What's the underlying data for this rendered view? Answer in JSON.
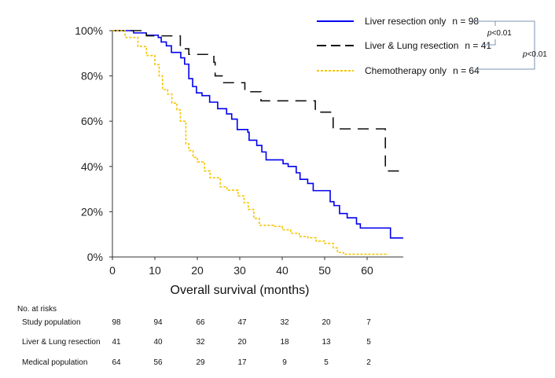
{
  "chart_data": {
    "type": "line",
    "subtype": "kaplan-meier-step",
    "xlabel": "Overall survival (months)",
    "ylabel": "",
    "xlim": [
      0,
      68.5
    ],
    "ylim": [
      0,
      100
    ],
    "x_ticks": [
      "0",
      "10",
      "20",
      "30",
      "40",
      "50",
      "60"
    ],
    "y_ticks": [
      "0%",
      "20%",
      "40%",
      "60%",
      "80%",
      "100%"
    ],
    "grid": false,
    "legend_position": "top-right",
    "series": [
      {
        "name": "Liver resection only",
        "n_label": "n = 98",
        "color": "#0000ee",
        "style": "solid",
        "points": [
          [
            0,
            100
          ],
          [
            5,
            99
          ],
          [
            8,
            98
          ],
          [
            10.8,
            97
          ],
          [
            11.5,
            95
          ],
          [
            12.7,
            93.3
          ],
          [
            13.9,
            90.4
          ],
          [
            16.1,
            88
          ],
          [
            17,
            85.2
          ],
          [
            18,
            78.8
          ],
          [
            18.9,
            75.3
          ],
          [
            19.8,
            72.5
          ],
          [
            21.1,
            71.3
          ],
          [
            22.9,
            68.4
          ],
          [
            24.8,
            65.5
          ],
          [
            26.9,
            63.2
          ],
          [
            28.1,
            60.9
          ],
          [
            29.4,
            56.3
          ],
          [
            31.9,
            55.1
          ],
          [
            32.2,
            51.6
          ],
          [
            34,
            49.3
          ],
          [
            35.2,
            46.4
          ],
          [
            36.2,
            42.9
          ],
          [
            40.2,
            41.2
          ],
          [
            41.4,
            40
          ],
          [
            43.3,
            37.2
          ],
          [
            44.2,
            34.3
          ],
          [
            46,
            32.5
          ],
          [
            47.3,
            29.3
          ],
          [
            51.3,
            24.4
          ],
          [
            52.2,
            22.7
          ],
          [
            53.5,
            19.2
          ],
          [
            55.3,
            17.3
          ],
          [
            57.5,
            14.6
          ],
          [
            58.4,
            12.8
          ],
          [
            65.5,
            8.4
          ],
          [
            68.5,
            8.4
          ]
        ]
      },
      {
        "name": "Liver & Lung resection",
        "n_label": "n = 41",
        "color": "#111111",
        "style": "dashed",
        "points": [
          [
            0,
            100
          ],
          [
            8,
            97.7
          ],
          [
            16,
            92
          ],
          [
            18,
            89.5
          ],
          [
            23.9,
            86
          ],
          [
            24.2,
            80
          ],
          [
            26,
            77
          ],
          [
            31.2,
            73
          ],
          [
            35,
            69
          ],
          [
            47.8,
            64
          ],
          [
            52,
            56.6
          ],
          [
            64.3,
            38
          ],
          [
            68.5,
            38
          ]
        ]
      },
      {
        "name": "Chemotherapy only",
        "n_label": "n = 64",
        "color": "#f5c400",
        "style": "dotted",
        "points": [
          [
            0,
            100
          ],
          [
            3,
            97
          ],
          [
            6,
            93
          ],
          [
            8,
            89
          ],
          [
            10,
            85
          ],
          [
            11,
            80
          ],
          [
            11.8,
            74
          ],
          [
            13,
            72
          ],
          [
            14,
            68
          ],
          [
            15.2,
            65
          ],
          [
            16,
            60
          ],
          [
            17.3,
            50
          ],
          [
            18,
            47
          ],
          [
            19,
            44
          ],
          [
            20,
            42
          ],
          [
            21.7,
            38
          ],
          [
            23,
            35
          ],
          [
            25.4,
            31
          ],
          [
            27,
            29.5
          ],
          [
            29.6,
            27
          ],
          [
            31,
            24
          ],
          [
            32,
            21
          ],
          [
            33.3,
            17
          ],
          [
            34.6,
            14
          ],
          [
            38,
            13.5
          ],
          [
            40,
            12
          ],
          [
            42,
            10.5
          ],
          [
            44,
            9
          ],
          [
            46,
            8.5
          ],
          [
            48,
            7
          ],
          [
            50,
            6
          ],
          [
            52,
            4
          ],
          [
            53,
            2
          ],
          [
            54.4,
            1.2
          ],
          [
            65,
            1.2
          ]
        ]
      }
    ],
    "annotations": [
      {
        "text_prefix": "p",
        "text": "<0.01",
        "compares": [
          "Liver resection only",
          "Liver & Lung resection"
        ]
      },
      {
        "text_prefix": "p",
        "text": "<0.01",
        "compares": [
          "Liver resection only",
          "Chemotherapy only"
        ]
      }
    ],
    "risk_table": {
      "title": "No. at risks",
      "rows": [
        {
          "label": "Study population",
          "values": [
            "98",
            "94",
            "66",
            "47",
            "32",
            "20",
            "7"
          ]
        },
        {
          "label": "Liver & Lung resection",
          "values": [
            "41",
            "40",
            "32",
            "20",
            "18",
            "13",
            "5"
          ]
        },
        {
          "label": "Medical population",
          "values": [
            "64",
            "56",
            "29",
            "17",
            "9",
            "5",
            "2"
          ]
        }
      ]
    }
  }
}
